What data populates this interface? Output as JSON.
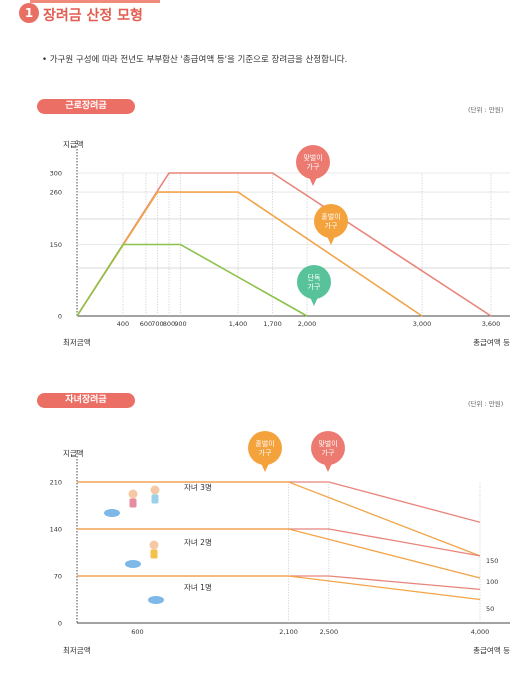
{
  "header": {
    "number": "1",
    "title": "장려금 산정 모형"
  },
  "description": "• 가구원 구성에 따라 전년도 부부합산 '총급여액 등'을 기준으로  장려금을 산정합니다.",
  "chart_data": [
    {
      "type": "line",
      "section": "근로장려금",
      "unit": "(단위 : 만원)",
      "ylabel": "지급액",
      "xlabel": "총급여액 등",
      "origin_label": "최저금액",
      "xlim": [
        0,
        3600
      ],
      "ylim": [
        0,
        300
      ],
      "y_ticks": [
        0,
        150,
        260,
        300
      ],
      "x_ticks": [
        400,
        600,
        700,
        800,
        900,
        1400,
        1700,
        2000,
        3000,
        3600
      ],
      "series": [
        {
          "name": "맞벌이 가구",
          "color": "#e8847a",
          "x": [
            0,
            800,
            1700,
            3600
          ],
          "y": [
            0,
            300,
            300,
            0
          ]
        },
        {
          "name": "홑벌이 가구",
          "color": "#f2a448",
          "x": [
            0,
            700,
            1400,
            3000
          ],
          "y": [
            0,
            260,
            260,
            0
          ]
        },
        {
          "name": "단독 가구",
          "color": "#8cc24a",
          "x": [
            0,
            400,
            900,
            2000
          ],
          "y": [
            0,
            150,
            150,
            0
          ]
        }
      ],
      "callouts": [
        {
          "lines": [
            "맞벌이",
            "가구"
          ],
          "color": "#ec7a70"
        },
        {
          "lines": [
            "홑벌이",
            "가구"
          ],
          "color": "#f4a23c"
        },
        {
          "lines": [
            "단독",
            "가구"
          ],
          "color": "#58c39b"
        }
      ]
    },
    {
      "type": "line",
      "section": "자녀장려금",
      "unit": "(단위 : 만원)",
      "ylabel": "지급액",
      "xlabel": "총급여액 등",
      "origin_label": "최저금액",
      "xlim": [
        0,
        4000
      ],
      "ylim": [
        0,
        210
      ],
      "y_ticks": [
        0,
        70,
        140,
        210
      ],
      "x_ticks": [
        600,
        2100,
        2500,
        4000
      ],
      "right_labels": [
        "150",
        "100",
        "50"
      ],
      "series": [
        {
          "name": "맞벌이 자녀 3명",
          "color": "#e8847a",
          "x": [
            0,
            2500,
            4000
          ],
          "y": [
            210,
            210,
            150
          ]
        },
        {
          "name": "홑벌이 자녀 3명",
          "color": "#f2a448",
          "x": [
            0,
            2100,
            4000
          ],
          "y": [
            210,
            210,
            100
          ]
        },
        {
          "name": "맞벌이 자녀 2명",
          "color": "#e8847a",
          "x": [
            0,
            2500,
            4000
          ],
          "y": [
            140,
            140,
            100
          ]
        },
        {
          "name": "홑벌이 자녀 2명",
          "color": "#f2a448",
          "x": [
            0,
            2100,
            4000
          ],
          "y": [
            140,
            140,
            67
          ]
        },
        {
          "name": "맞벌이 자녀 1명",
          "color": "#e8847a",
          "x": [
            0,
            2500,
            4000
          ],
          "y": [
            70,
            70,
            50
          ]
        },
        {
          "name": "홑벌이 자녀 1명",
          "color": "#f2a448",
          "x": [
            0,
            2100,
            4000
          ],
          "y": [
            70,
            70,
            35
          ]
        }
      ],
      "child_labels": [
        "자녀 3명",
        "자녀 2명",
        "자녀 1명"
      ],
      "callouts": [
        {
          "lines": [
            "홑벌이",
            "가구"
          ],
          "color": "#f4a23c"
        },
        {
          "lines": [
            "맞벌이",
            "가구"
          ],
          "color": "#ec7a70"
        }
      ]
    }
  ]
}
